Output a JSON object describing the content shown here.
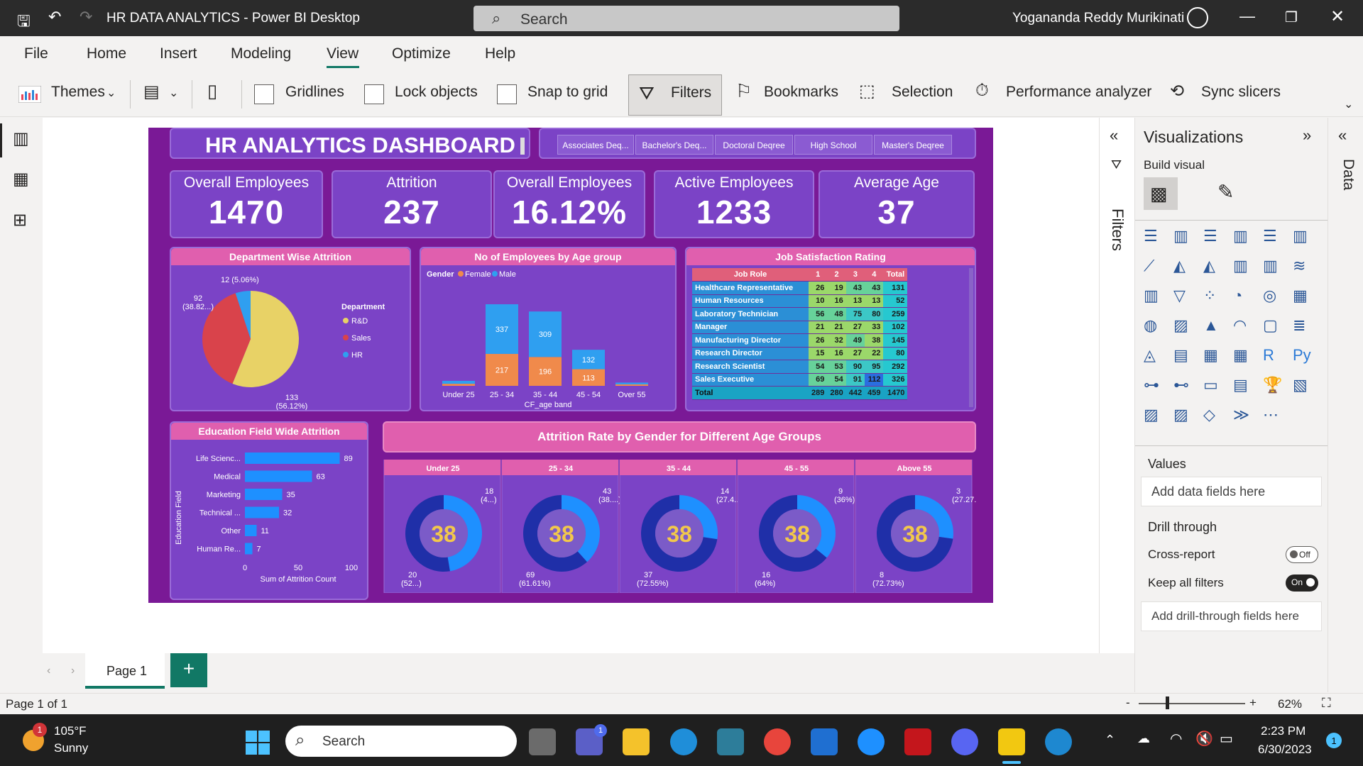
{
  "titlebar": {
    "title": "HR DATA ANALYTICS - Power BI Desktop",
    "search": "Search",
    "user": "Yogananda Reddy Murikinati"
  },
  "menu": [
    "File",
    "Home",
    "Insert",
    "Modeling",
    "View",
    "Optimize",
    "Help"
  ],
  "toolbar": {
    "themes": "Themes",
    "gridlines": "Gridlines",
    "lock": "Lock objects",
    "snap": "Snap to grid",
    "filters": "Filters",
    "bookmarks": "Bookmarks",
    "selection": "Selection",
    "perf": "Performance analyzer",
    "sync": "Sync slicers"
  },
  "dashboard": {
    "title": "HR ANALYTICS DASHBOARD",
    "education_slicer": [
      "Associates Deq...",
      "Bachelor's Deq...",
      "Doctoral Deqree",
      "High School",
      "Master's Deqree"
    ],
    "kpis": [
      {
        "label": "Overall Employees",
        "value": "1470"
      },
      {
        "label": "Attrition",
        "value": "237"
      },
      {
        "label": "Overall Employees",
        "value": "16.12%"
      },
      {
        "label": "Active Employees",
        "value": "1233"
      },
      {
        "label": "Average Age",
        "value": "37"
      }
    ],
    "dept_title": "Department Wise Attrition",
    "age_title": "No of Employees by Age group",
    "job_title": "Job Satisfaction Rating",
    "edu_title": "Education Field Wide Attrition",
    "gender_title": "Attrition Rate by Gender for Different Age Groups"
  },
  "chart_data": [
    {
      "type": "pie",
      "title": "Department Wise Attrition",
      "legend_title": "Department",
      "labels": [
        "R&D",
        "Sales",
        "HR"
      ],
      "values": [
        133,
        92,
        12
      ],
      "data_labels": [
        "133 (56.12%)",
        "92 (38.82...)",
        "12 (5.06%)"
      ],
      "colors": [
        "#e8d266",
        "#d9434b",
        "#2f9ff0"
      ],
      "legend_placement": "right"
    },
    {
      "type": "bar",
      "title": "No of Employees by Age group",
      "legend_title": "Gender",
      "xlabel": "CF_age band",
      "categories": [
        "Under 25",
        "25 - 34",
        "35 - 44",
        "45 - 54",
        "Over 55"
      ],
      "series": [
        {
          "name": "Female",
          "color": "#f08a4b",
          "values": [
            14,
            217,
            196,
            113,
            10
          ]
        },
        {
          "name": "Male",
          "color": "#2f9ff0",
          "values": [
            20,
            337,
            309,
            132,
            12
          ]
        }
      ],
      "stacked": true
    },
    {
      "type": "table",
      "title": "Job Satisfaction Rating",
      "columns": [
        "Job Role",
        "1",
        "2",
        "3",
        "4",
        "Total"
      ],
      "rows": [
        [
          "Healthcare Representative",
          "26",
          "19",
          "43",
          "43",
          "131"
        ],
        [
          "Human Resources",
          "10",
          "16",
          "13",
          "13",
          "52"
        ],
        [
          "Laboratory Technician",
          "56",
          "48",
          "75",
          "80",
          "259"
        ],
        [
          "Manager",
          "21",
          "21",
          "27",
          "33",
          "102"
        ],
        [
          "Manufacturing Director",
          "26",
          "32",
          "49",
          "38",
          "145"
        ],
        [
          "Research Director",
          "15",
          "16",
          "27",
          "22",
          "80"
        ],
        [
          "Research Scientist",
          "54",
          "53",
          "90",
          "95",
          "292"
        ],
        [
          "Sales Executive",
          "69",
          "54",
          "91",
          "112",
          "326"
        ],
        [
          "Total",
          "289",
          "280",
          "442",
          "459",
          "1470"
        ]
      ]
    },
    {
      "type": "bar",
      "orientation": "horizontal",
      "title": "Education Field Wide Attrition",
      "xlabel": "Sum of Attrition Count",
      "ylabel": "Education Field",
      "categories": [
        "Life Scienc...",
        "Medical",
        "Marketing",
        "Technical ...",
        "Other",
        "Human Re..."
      ],
      "values": [
        89,
        63,
        35,
        32,
        11,
        7
      ],
      "xlim": [
        0,
        100
      ],
      "xticks": [
        "0",
        "50",
        "100"
      ],
      "color": "#1e90ff"
    },
    {
      "type": "pie",
      "title": "Attrition Rate by Gender for Different Age Groups",
      "donut": true,
      "center_label": "38",
      "groups": [
        {
          "name": "Under 25",
          "male": 20,
          "female": 18,
          "male_label": "20 (52...)",
          "female_label": "18 (4...)"
        },
        {
          "name": "25 - 34",
          "male": 69,
          "female": 43,
          "male_label": "69 (61.61%)",
          "female_label": "43 (38....)"
        },
        {
          "name": "35 - 44",
          "male": 37,
          "female": 14,
          "male_label": "37 (72.55%)",
          "female_label": "14 (27.4...)"
        },
        {
          "name": "45 - 55",
          "male": 16,
          "female": 9,
          "male_label": "16 (64%)",
          "female_label": "9 (36%)"
        },
        {
          "name": "Above 55",
          "male": 8,
          "female": 3,
          "male_label": "8 (72.73%)",
          "female_label": "3 (27.27...)"
        }
      ]
    }
  ],
  "viz_pane": {
    "title": "Visualizations",
    "build": "Build visual",
    "values": "Values",
    "values_placeholder": "Add data fields here",
    "drill": "Drill through",
    "cross": "Cross-report",
    "cross_state": "Off",
    "keep": "Keep all filters",
    "keep_state": "On",
    "drill_placeholder": "Add drill-through fields here",
    "filters_label": "Filters",
    "data_label": "Data"
  },
  "pages": {
    "current": "Page 1",
    "add": "+",
    "status": "Page 1 of 1",
    "zoom": "62%"
  },
  "taskbar": {
    "weather_temp": "105°F",
    "weather_desc": "Sunny",
    "search": "Search",
    "time": "2:23 PM",
    "date": "6/30/2023",
    "notif": "1",
    "weather_badge": "1",
    "teams_badge": "1"
  }
}
